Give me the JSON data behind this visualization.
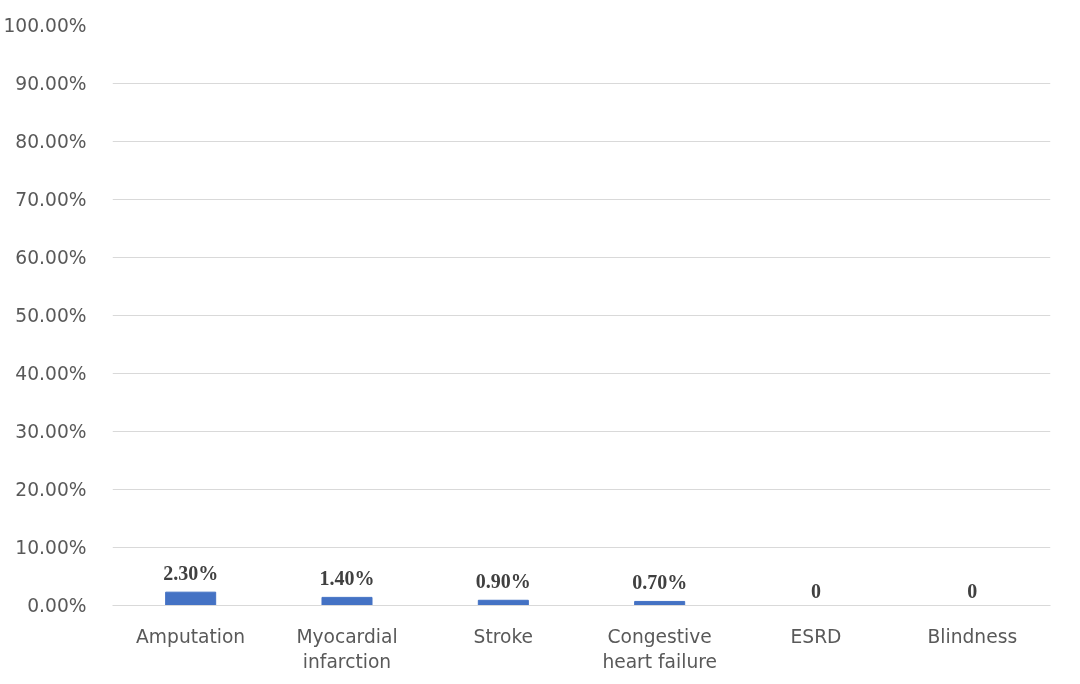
{
  "chart_data": {
    "type": "bar",
    "categories": [
      "Amputation",
      "Myocardial infarction",
      "Stroke",
      "Congestive heart failure",
      "ESRD",
      "Blindness"
    ],
    "values": [
      2.3,
      1.4,
      0.9,
      0.7,
      0,
      0
    ],
    "value_labels": [
      "2.30%",
      "1.40%",
      "0.90%",
      "0.70%",
      "0",
      "0"
    ],
    "color": "#4472c4",
    "ylim": [
      0,
      100
    ],
    "yticks": [
      {
        "value": 0,
        "label": "0.00%"
      },
      {
        "value": 10,
        "label": "10.00%"
      },
      {
        "value": 20,
        "label": "20.00%"
      },
      {
        "value": 30,
        "label": "30.00%"
      },
      {
        "value": 40,
        "label": "40.00%"
      },
      {
        "value": 50,
        "label": "50.00%"
      },
      {
        "value": 60,
        "label": "60.00%"
      },
      {
        "value": 70,
        "label": "70.00%"
      },
      {
        "value": 80,
        "label": "80.00%"
      },
      {
        "value": 90,
        "label": "90.00%"
      },
      {
        "value": 100,
        "label": "100.00%"
      }
    ],
    "grid": "y"
  }
}
